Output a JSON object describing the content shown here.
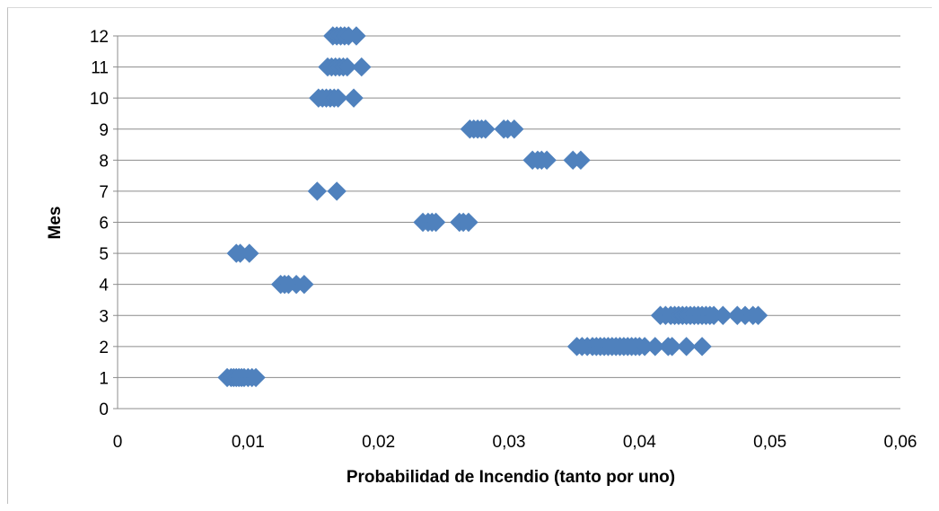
{
  "chart_data": {
    "type": "scatter",
    "title": "",
    "xlabel": "Probabilidad de Incendio (tanto por uno)",
    "ylabel": "Mes",
    "xlim": [
      0,
      0.06
    ],
    "ylim": [
      0,
      12
    ],
    "x_ticks": [
      "0",
      "0,01",
      "0,02",
      "0,03",
      "0,04",
      "0,05",
      "0,06"
    ],
    "y_ticks": [
      "0",
      "1",
      "2",
      "3",
      "4",
      "5",
      "6",
      "7",
      "8",
      "9",
      "10",
      "11",
      "12"
    ],
    "grid": "horizontal",
    "legend": "none",
    "marker": "diamond",
    "color": "#4f81bd",
    "series": [
      {
        "points": [
          [
            0.0084,
            1
          ],
          [
            0.0087,
            1
          ],
          [
            0.0089,
            1
          ],
          [
            0.0091,
            1
          ],
          [
            0.0093,
            1
          ],
          [
            0.0095,
            1
          ],
          [
            0.0097,
            1
          ],
          [
            0.01,
            1
          ],
          [
            0.0103,
            1
          ],
          [
            0.0106,
            1
          ],
          [
            0.0352,
            2
          ],
          [
            0.0356,
            2
          ],
          [
            0.036,
            2
          ],
          [
            0.0364,
            2
          ],
          [
            0.0367,
            2
          ],
          [
            0.037,
            2
          ],
          [
            0.0373,
            2
          ],
          [
            0.0376,
            2
          ],
          [
            0.0379,
            2
          ],
          [
            0.0382,
            2
          ],
          [
            0.0385,
            2
          ],
          [
            0.0388,
            2
          ],
          [
            0.0391,
            2
          ],
          [
            0.0394,
            2
          ],
          [
            0.0397,
            2
          ],
          [
            0.04,
            2
          ],
          [
            0.0404,
            2
          ],
          [
            0.0412,
            2
          ],
          [
            0.0422,
            2
          ],
          [
            0.0425,
            2
          ],
          [
            0.0436,
            2
          ],
          [
            0.0448,
            2
          ],
          [
            0.0416,
            3
          ],
          [
            0.042,
            3
          ],
          [
            0.0424,
            3
          ],
          [
            0.0427,
            3
          ],
          [
            0.043,
            3
          ],
          [
            0.0433,
            3
          ],
          [
            0.0436,
            3
          ],
          [
            0.0439,
            3
          ],
          [
            0.0442,
            3
          ],
          [
            0.0445,
            3
          ],
          [
            0.0448,
            3
          ],
          [
            0.0451,
            3
          ],
          [
            0.0454,
            3
          ],
          [
            0.0457,
            3
          ],
          [
            0.0464,
            3
          ],
          [
            0.0475,
            3
          ],
          [
            0.0481,
            3
          ],
          [
            0.0487,
            3
          ],
          [
            0.0491,
            3
          ],
          [
            0.0125,
            4
          ],
          [
            0.0128,
            4
          ],
          [
            0.0131,
            4
          ],
          [
            0.0137,
            4
          ],
          [
            0.0143,
            4
          ],
          [
            0.0091,
            5
          ],
          [
            0.0094,
            5
          ],
          [
            0.0101,
            5
          ],
          [
            0.0234,
            6
          ],
          [
            0.0238,
            6
          ],
          [
            0.0241,
            6
          ],
          [
            0.0244,
            6
          ],
          [
            0.0262,
            6
          ],
          [
            0.0265,
            6
          ],
          [
            0.0269,
            6
          ],
          [
            0.0153,
            7
          ],
          [
            0.0168,
            7
          ],
          [
            0.0318,
            8
          ],
          [
            0.0322,
            8
          ],
          [
            0.0325,
            8
          ],
          [
            0.0329,
            8
          ],
          [
            0.0349,
            8
          ],
          [
            0.0355,
            8
          ],
          [
            0.027,
            9
          ],
          [
            0.0273,
            9
          ],
          [
            0.0276,
            9
          ],
          [
            0.0279,
            9
          ],
          [
            0.0282,
            9
          ],
          [
            0.0296,
            9
          ],
          [
            0.0299,
            9
          ],
          [
            0.0304,
            9
          ],
          [
            0.0154,
            10
          ],
          [
            0.0157,
            10
          ],
          [
            0.016,
            10
          ],
          [
            0.0163,
            10
          ],
          [
            0.0166,
            10
          ],
          [
            0.0169,
            10
          ],
          [
            0.0181,
            10
          ],
          [
            0.0161,
            11
          ],
          [
            0.0164,
            11
          ],
          [
            0.0167,
            11
          ],
          [
            0.017,
            11
          ],
          [
            0.0173,
            11
          ],
          [
            0.0176,
            11
          ],
          [
            0.0187,
            11
          ],
          [
            0.0165,
            12
          ],
          [
            0.0168,
            12
          ],
          [
            0.0171,
            12
          ],
          [
            0.0174,
            12
          ],
          [
            0.0177,
            12
          ],
          [
            0.0183,
            12
          ]
        ]
      }
    ]
  }
}
